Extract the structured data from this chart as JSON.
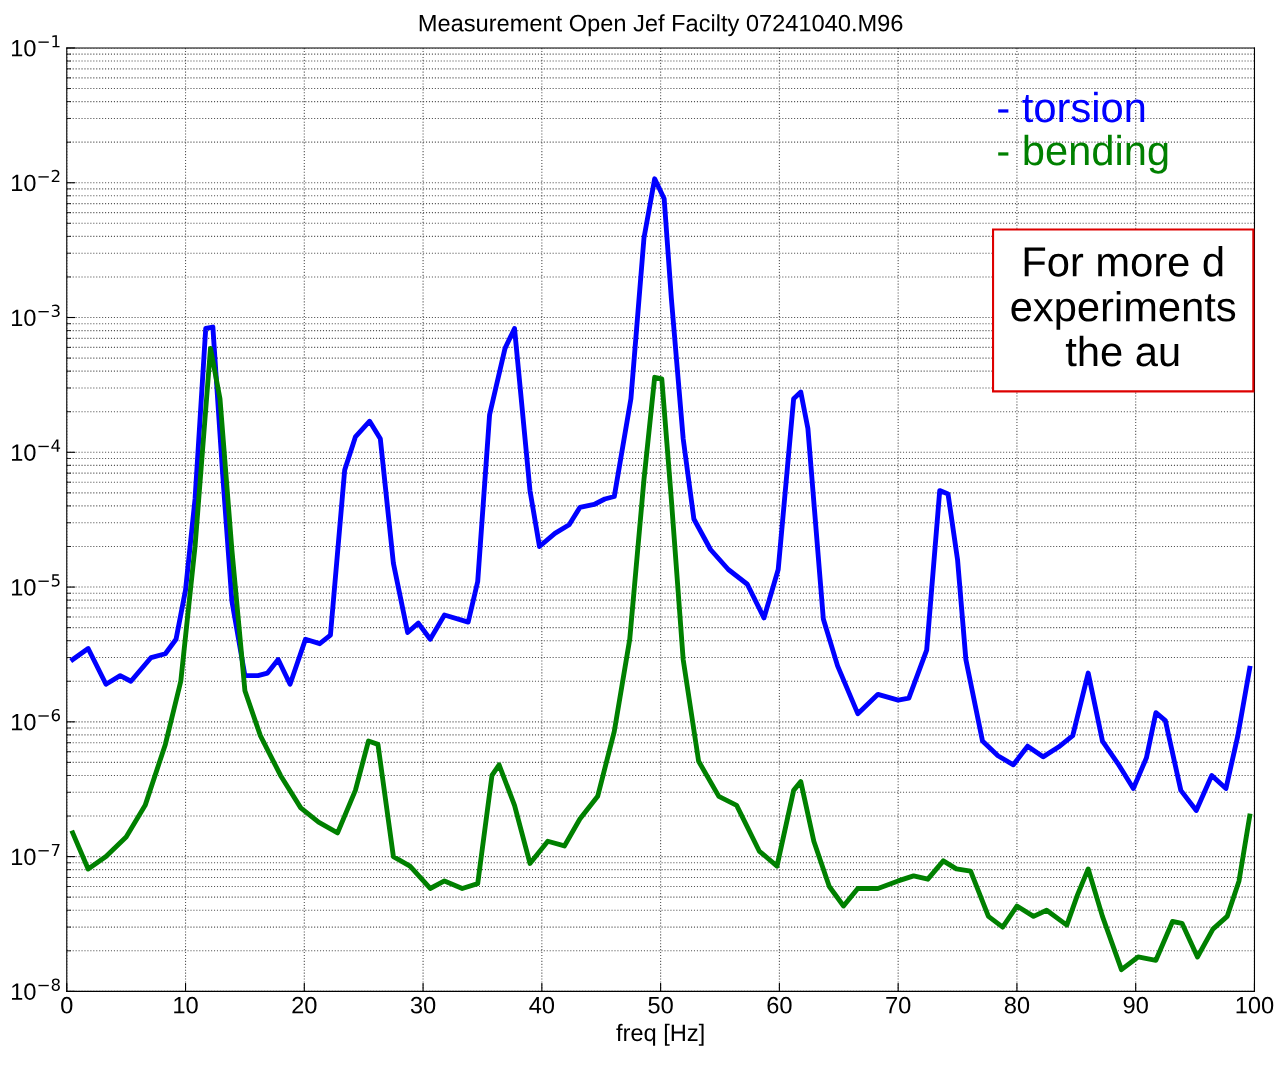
{
  "chart_data": {
    "type": "line",
    "title": "Measurement Open Jef Facilty 07241040.M96",
    "xlabel": "freq [Hz]",
    "xlim": [
      0,
      100
    ],
    "xticks": [
      0,
      10,
      20,
      30,
      40,
      50,
      60,
      70,
      80,
      90,
      100
    ],
    "ylim": [
      1e-08,
      0.1
    ],
    "log": true,
    "yticks": [
      {
        "value": 1e-08,
        "label": "10$^{−8}$"
      },
      {
        "value": 1e-07,
        "label": "10$^{−7}$"
      },
      {
        "value": 1e-06,
        "label": "10$^{−6}$"
      },
      {
        "value": 1e-05,
        "label": "10$^{−5}$"
      },
      {
        "value": 0.0001,
        "label": "10$^{−4}$"
      },
      {
        "value": 0.001,
        "label": "10$^{−3}$"
      },
      {
        "value": 0.01,
        "label": "10$^{−2}$"
      },
      {
        "value": 0.1,
        "label": "10$^{−1}$"
      }
    ],
    "grid": true,
    "legend": "top right",
    "marker": "none",
    "line_style": "solid",
    "annotations": [
      "For more d\nexperiments\nthe au"
    ],
    "series": [
      {
        "name": "- torsion",
        "color": "#0000ff",
        "x": [
          0.5,
          1.8,
          3.3,
          4.5,
          5.4,
          7.1,
          8.3,
          9.2,
          10,
          10.8,
          11.7,
          12.3,
          13.1,
          13.9,
          15,
          16.1,
          16.9,
          17.8,
          18.8,
          20.1,
          21.3,
          22.2,
          23.4,
          24.3,
          25.5,
          26.4,
          27.5,
          28.7,
          29.6,
          30.6,
          31.8,
          33.8,
          34.6,
          35.6,
          36.9,
          37.7,
          39,
          39.8,
          41.1,
          42.3,
          43.2,
          44.4,
          45.3,
          46.1,
          47.5,
          48.6,
          49.5,
          50.3,
          50.9,
          51.9,
          52.8,
          54.2,
          55.7,
          57.3,
          58.7,
          59.9,
          61.2,
          61.8,
          62.4,
          63.7,
          64.9,
          66.6,
          68.3,
          70,
          70.9,
          72.4,
          73.5,
          74.2,
          75,
          75.7,
          77.1,
          78.4,
          79.7,
          80.9,
          82.2,
          83.5,
          84.7,
          86,
          87.2,
          88.5,
          89.8,
          90.9,
          91.7,
          92.5,
          93.8,
          95.1,
          96.4,
          97.6,
          98.6,
          99.6
        ],
        "values": [
          2.9e-06,
          3.5e-06,
          1.9e-06,
          2.2e-06,
          2e-06,
          3e-06,
          3.2e-06,
          4.1e-06,
          9.5e-06,
          4.5e-05,
          0.00083,
          0.00085,
          7.4e-05,
          7.9e-06,
          2.2e-06,
          2.2e-06,
          2.3e-06,
          2.9e-06,
          1.9e-06,
          4.1e-06,
          3.8e-06,
          4.4e-06,
          7.4e-05,
          0.00013,
          0.00017,
          0.000126,
          1.5e-05,
          4.6e-06,
          5.4e-06,
          4.1e-06,
          6.2e-06,
          5.5e-06,
          1.1e-05,
          0.00019,
          0.00059,
          0.00083,
          5.2e-05,
          2e-05,
          2.5e-05,
          2.9e-05,
          3.9e-05,
          4.1e-05,
          4.5e-05,
          4.7e-05,
          0.00025,
          0.0039,
          0.0107,
          0.0076,
          0.0014,
          0.000126,
          3.2e-05,
          1.9e-05,
          1.35e-05,
          1.05e-05,
          5.9e-06,
          1.35e-05,
          0.00025,
          0.00028,
          0.00015,
          5.8e-06,
          2.6e-06,
          1.15e-06,
          1.6e-06,
          1.45e-06,
          1.5e-06,
          3.4e-06,
          5.2e-05,
          4.9e-05,
          1.6e-05,
          2.9e-06,
          7.2e-07,
          5.6e-07,
          4.8e-07,
          6.6e-07,
          5.5e-07,
          6.5e-07,
          7.9e-07,
          2.3e-06,
          7.2e-07,
          4.9e-07,
          3.2e-07,
          5.4e-07,
          1.17e-06,
          1.02e-06,
          3.1e-07,
          2.2e-07,
          4e-07,
          3.2e-07,
          7.9e-07,
          2.5e-06
        ]
      },
      {
        "name": "- bending",
        "color": "#008000",
        "x": [
          0.5,
          1.8,
          3.3,
          5,
          6.6,
          8.3,
          9.6,
          10.8,
          12.1,
          12.9,
          13.9,
          15,
          16.3,
          18,
          19.7,
          21.2,
          22.8,
          24.3,
          25.4,
          26.2,
          27.5,
          28.9,
          30.6,
          31.8,
          33.3,
          34.6,
          35.8,
          36.4,
          37.7,
          39,
          40.5,
          41.9,
          43.2,
          44.7,
          46.1,
          47.4,
          48.6,
          49.5,
          50.1,
          50.9,
          51.9,
          53.2,
          54.9,
          56.4,
          58.3,
          59.8,
          61.2,
          61.8,
          62.9,
          64.2,
          65.4,
          66.6,
          68.3,
          70,
          71.3,
          72.5,
          73.8,
          74.9,
          76.1,
          77.6,
          78.8,
          80,
          81.4,
          82.5,
          84.2,
          85.1,
          86,
          87.2,
          88.8,
          90.2,
          91.7,
          93.1,
          93.9,
          95.2,
          96.5,
          97.7,
          98.7,
          99.6
        ],
        "values": [
          1.5e-07,
          8.1e-08,
          1e-07,
          1.4e-07,
          2.4e-07,
          6.8e-07,
          2e-06,
          2e-05,
          0.00059,
          0.00025,
          1.9e-05,
          1.7e-06,
          7.9e-07,
          4e-07,
          2.3e-07,
          1.8e-07,
          1.5e-07,
          3.1e-07,
          7.2e-07,
          6.8e-07,
          1e-07,
          8.5e-08,
          5.8e-08,
          6.6e-08,
          5.8e-08,
          6.3e-08,
          4e-07,
          4.8e-07,
          2.4e-07,
          8.9e-08,
          1.3e-07,
          1.2e-07,
          1.9e-07,
          2.8e-07,
          8.5e-07,
          4.1e-06,
          6.3e-05,
          0.00036,
          0.00035,
          4.5e-05,
          2.9e-06,
          5.1e-07,
          2.8e-07,
          2.4e-07,
          1.1e-07,
          8.5e-08,
          3.1e-07,
          3.6e-07,
          1.3e-07,
          6e-08,
          4.3e-08,
          5.8e-08,
          5.8e-08,
          6.6e-08,
          7.2e-08,
          6.8e-08,
          9.3e-08,
          8.1e-08,
          7.8e-08,
          3.6e-08,
          3e-08,
          4.3e-08,
          3.6e-08,
          4e-08,
          3.1e-08,
          5.2e-08,
          8.1e-08,
          3.6e-08,
          1.45e-08,
          1.8e-08,
          1.7e-08,
          3.3e-08,
          3.2e-08,
          1.8e-08,
          2.9e-08,
          3.6e-08,
          6.6e-08,
          2e-07
        ]
      }
    ]
  }
}
